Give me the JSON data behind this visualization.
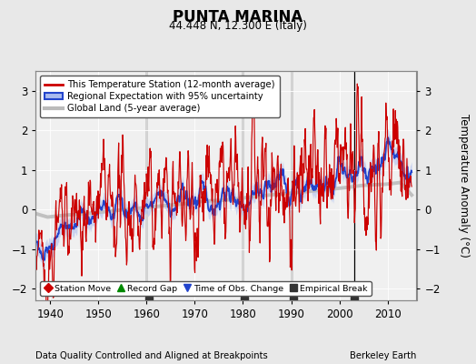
{
  "title": "PUNTA MARINA",
  "subtitle": "44.448 N, 12.300 E (Italy)",
  "xlabel_bottom": "Data Quality Controlled and Aligned at Breakpoints",
  "xlabel_right": "Berkeley Earth",
  "ylabel": "Temperature Anomaly (°C)",
  "xlim": [
    1937,
    2016
  ],
  "ylim": [
    -2.3,
    3.5
  ],
  "yticks": [
    -2,
    -1,
    0,
    1,
    2,
    3
  ],
  "xticks": [
    1940,
    1950,
    1960,
    1970,
    1980,
    1990,
    2000,
    2010
  ],
  "bg_color": "#e8e8e8",
  "plot_bg_color": "#f0f0f0",
  "vertical_lines": [
    1960,
    1980,
    1990,
    2003
  ],
  "red_color": "#cc0000",
  "blue_color": "#2244cc",
  "blue_fill_color": "#aabbee",
  "gray_color": "#bbbbbb",
  "legend_entries": [
    "This Temperature Station (12-month average)",
    "Regional Expectation with 95% uncertainty",
    "Global Land (5-year average)"
  ],
  "marker_legend": [
    {
      "label": "Station Move",
      "color": "#cc0000",
      "marker": "D"
    },
    {
      "label": "Record Gap",
      "color": "#008800",
      "marker": "^"
    },
    {
      "label": "Time of Obs. Change",
      "color": "#2244cc",
      "marker": "v"
    },
    {
      "label": "Empirical Break",
      "color": "#333333",
      "marker": "s"
    }
  ],
  "empirical_breaks": [
    1960.5,
    1980.2,
    1990.5,
    2003.0
  ],
  "seed": 42
}
